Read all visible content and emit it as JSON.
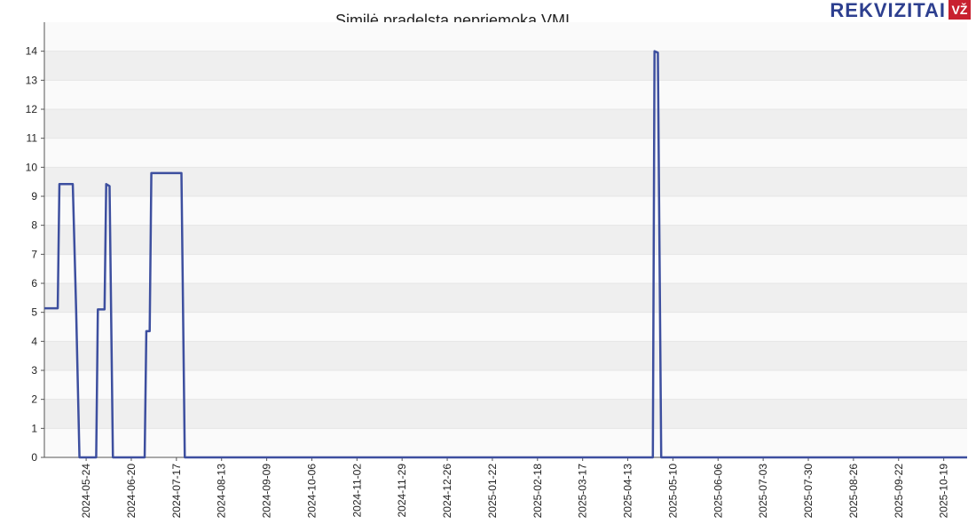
{
  "logo": {
    "text": "REKVIZITAI",
    "badge": "VŽ"
  },
  "chart_data": {
    "type": "line",
    "title": "Similė pradelsta nepriemoka VMI",
    "x": [
      "2024-04-29",
      "2024-05-07",
      "2024-05-08",
      "2024-05-16",
      "2024-05-18",
      "2024-05-20",
      "2024-05-30",
      "2024-05-31",
      "2024-06-04",
      "2024-06-05",
      "2024-06-07",
      "2024-06-09",
      "2024-06-28",
      "2024-06-29",
      "2024-07-01",
      "2024-07-02",
      "2024-07-20",
      "2024-07-22",
      "2025-04-28",
      "2025-04-29",
      "2025-05-01",
      "2025-05-03",
      "2025-11-02"
    ],
    "values": [
      5.14,
      5.14,
      9.42,
      9.42,
      5.1,
      0,
      0,
      5.1,
      5.1,
      9.42,
      9.35,
      0,
      0,
      4.35,
      4.35,
      9.8,
      9.8,
      0,
      0,
      14,
      13.95,
      0,
      0
    ],
    "color": "#3d4f9f",
    "xlim": [
      "2024-04-29",
      "2025-11-02"
    ],
    "xticks": [
      "2024-05-24",
      "2024-06-20",
      "2024-07-17",
      "2024-08-13",
      "2024-09-09",
      "2024-10-06",
      "2024-11-02",
      "2024-11-29",
      "2024-12-26",
      "2025-01-22",
      "2025-02-18",
      "2025-03-17",
      "2025-04-13",
      "2025-05-10",
      "2025-06-06",
      "2025-07-03",
      "2025-07-30",
      "2025-08-26",
      "2025-09-22",
      "2025-10-19"
    ],
    "ylim": [
      0,
      15
    ],
    "yticks": [
      0,
      1,
      2,
      3,
      4,
      5,
      6,
      7,
      8,
      9,
      10,
      11,
      12,
      13,
      14
    ],
    "grid": true
  }
}
